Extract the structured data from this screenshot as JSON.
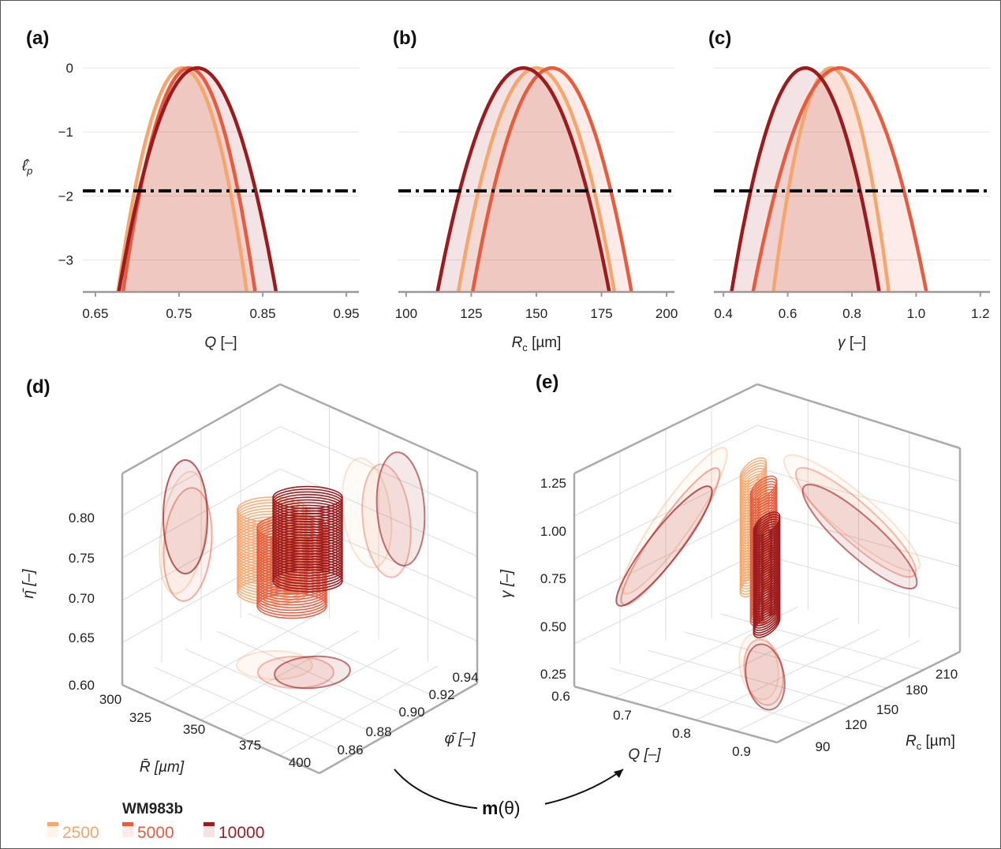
{
  "panels_2d": [
    {
      "label": "(a)",
      "xlabel_main": "Q",
      "xlabel_sub": "",
      "xlabel_unit": " [–]",
      "xticks": [
        "0.65",
        "0.75",
        "0.85",
        "0.95"
      ]
    },
    {
      "label": "(b)",
      "xlabel_main": "R",
      "xlabel_sub": "c",
      "xlabel_unit": " [µm]",
      "xticks": [
        "100",
        "125",
        "150",
        "175",
        "200"
      ]
    },
    {
      "label": "(c)",
      "xlabel_main": "γ",
      "xlabel_sub": "",
      "xlabel_unit": " [–]",
      "xticks": [
        "0.4",
        "0.6",
        "0.8",
        "1.0",
        "1.2"
      ]
    }
  ],
  "ylabel_2d": "ℓ̂",
  "ylabel_2d_sub": "p",
  "yticks_2d": [
    "0",
    "−1",
    "−2",
    "−3"
  ],
  "panels_3d": [
    {
      "label": "(d)",
      "vlabel": "η̄ [–]",
      "vticks": [
        "0.80",
        "0.75",
        "0.70",
        "0.65",
        "0.60"
      ],
      "xlabel": "R̄  [µm]",
      "xticks": [
        "300",
        "325",
        "350",
        "375",
        "400"
      ],
      "ylabel": "φ̄ [–]",
      "yticks": [
        "0.86",
        "0.88",
        "0.90",
        "0.92",
        "0.94"
      ]
    },
    {
      "label": "(e)",
      "vlabel": "γ [–]",
      "vticks": [
        "1.25",
        "1.00",
        "0.75",
        "0.50",
        "0.25"
      ],
      "xlabel": "Q [–]",
      "xticks": [
        "0.6",
        "0.7",
        "0.8",
        "0.9"
      ],
      "ylabel": "R",
      "ylabel_sub": "c",
      "ylabel_unit": " [µm]",
      "yticks": [
        "90",
        "120",
        "150",
        "180",
        "210"
      ]
    }
  ],
  "arrow_label_main": "m",
  "arrow_label_arg": "(θ)",
  "legend": {
    "title": "WM983b",
    "entries": [
      {
        "label": "2500",
        "color": "#f4a66e"
      },
      {
        "label": "5000",
        "color": "#e55c3f"
      },
      {
        "label": "10000",
        "color": "#9b1c1f"
      }
    ]
  },
  "chart_data": [
    {
      "type": "line",
      "panel": "(a)",
      "xlabel": "Q [–]",
      "ylabel": "ℓ̂p",
      "xlim": [
        0.635,
        0.965
      ],
      "ylim": [
        -3.5,
        0.1
      ],
      "threshold": -1.92,
      "series": [
        {
          "name": "2500",
          "center": 0.754,
          "halfwidth_at_min": 0.077
        },
        {
          "name": "5000",
          "center": 0.762,
          "halfwidth_at_min": 0.079
        },
        {
          "name": "10000",
          "center": 0.772,
          "halfwidth_at_min": 0.094
        }
      ]
    },
    {
      "type": "line",
      "panel": "(b)",
      "xlabel": "Rc [µm]",
      "ylabel": "ℓ̂p",
      "xlim": [
        97,
        203
      ],
      "ylim": [
        -3.5,
        0.1
      ],
      "threshold": -1.92,
      "series": [
        {
          "name": "2500",
          "center": 150,
          "halfwidth_at_min": 30
        },
        {
          "name": "5000",
          "center": 156,
          "halfwidth_at_min": 30.5
        },
        {
          "name": "10000",
          "center": 145,
          "halfwidth_at_min": 33
        }
      ]
    },
    {
      "type": "line",
      "panel": "(c)",
      "xlabel": "γ [–]",
      "ylabel": "ℓ̂p",
      "xlim": [
        0.37,
        1.23
      ],
      "ylim": [
        -3.5,
        0.1
      ],
      "threshold": -1.92,
      "series": [
        {
          "name": "2500",
          "center": 0.735,
          "halfwidth_at_min": 0.18
        },
        {
          "name": "5000",
          "center": 0.762,
          "halfwidth_at_min": 0.27
        },
        {
          "name": "10000",
          "center": 0.655,
          "halfwidth_at_min": 0.23
        }
      ]
    }
  ]
}
